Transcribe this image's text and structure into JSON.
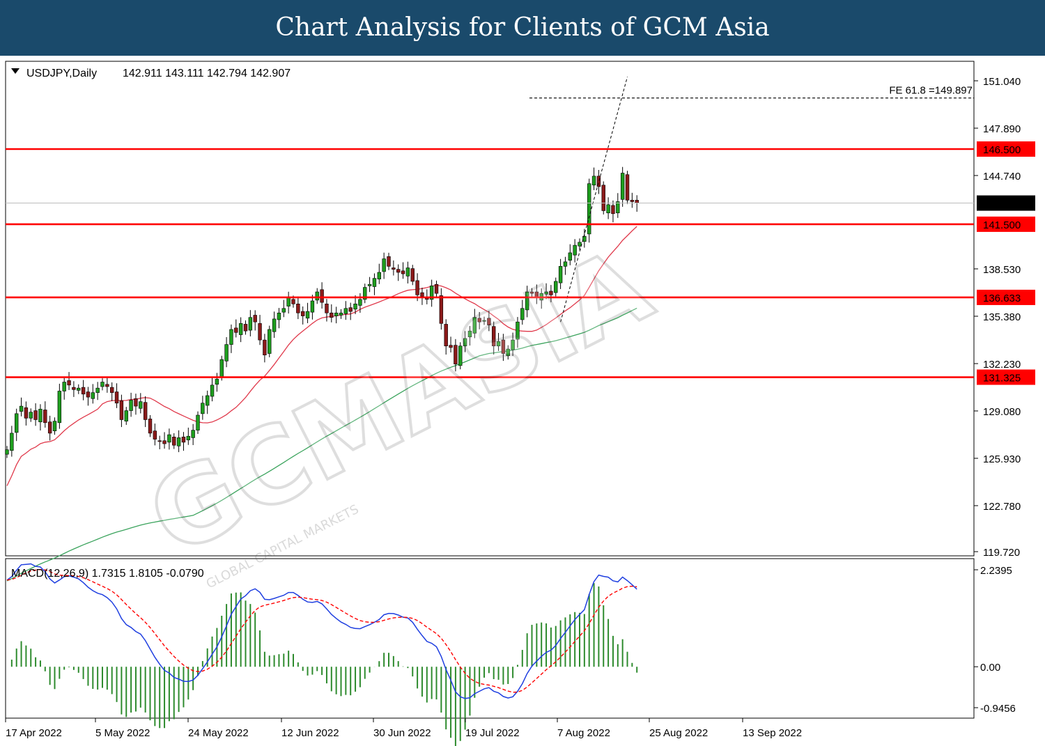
{
  "banner": {
    "title": "Chart Analysis for Clients of GCM Asia"
  },
  "watermark": {
    "brand": "GCMASIA",
    "subtitle": "GLOBAL CAPITAL MARKETS"
  },
  "colors": {
    "banner": "#1a4a6b",
    "bull": "#1e9e1e",
    "bear": "#8b1a1a",
    "ma_fast": "#e0394b",
    "ma_slow": "#3aa35c",
    "level": "#ff0000",
    "macd": "#1f3fe0",
    "signal": "#ff0000",
    "hist": "#2e8b2e"
  },
  "chart_data": [
    {
      "type": "candlestick",
      "title": "USDJPY,Daily",
      "header": {
        "symbol": "USDJPY,Daily",
        "ohlc": "142.911 143.111 142.794 142.907"
      },
      "ylim": [
        119.2,
        152.0
      ],
      "y_ticks": [
        "151.040",
        "147.890",
        "144.740",
        "138.530",
        "135.380",
        "132.230",
        "129.080",
        "125.930",
        "122.780",
        "119.720"
      ],
      "x_ticks": [
        "17 Apr 2022",
        "5 May 2022",
        "24 May 2022",
        "12 Jun 2022",
        "30 Jun 2022",
        "19 Jul 2022",
        "7 Aug 2022",
        "25 Aug 2022",
        "13 Sep 2022"
      ],
      "current_price": "142.907",
      "levels": [
        {
          "value": 146.5,
          "label": "146.500"
        },
        {
          "value": 141.5,
          "label": "141.500"
        },
        {
          "value": 136.633,
          "label": "136.633"
        },
        {
          "value": 131.325,
          "label": "131.325"
        }
      ],
      "fib_label": "FE 61.8 =149.897",
      "fib_value": 149.897,
      "grid": false,
      "closes": [
        126.5,
        127.6,
        128.9,
        129.4,
        128.6,
        129.0,
        128.5,
        129.2,
        128.3,
        127.6,
        128.4,
        130.4,
        131.0,
        130.8,
        130.5,
        130.6,
        130.2,
        130.0,
        130.3,
        130.6,
        131.0,
        130.7,
        130.3,
        129.6,
        128.5,
        129.1,
        129.8,
        129.4,
        129.7,
        128.5,
        127.6,
        127.2,
        127.1,
        126.9,
        127.5,
        126.8,
        127.3,
        127.0,
        127.4,
        127.8,
        128.8,
        129.6,
        130.1,
        130.8,
        131.2,
        132.5,
        133.5,
        134.5,
        134.3,
        134.9,
        134.4,
        135.3,
        135.0,
        133.8,
        132.8,
        134.5,
        135.2,
        135.6,
        135.9,
        136.6,
        136.2,
        135.6,
        135.4,
        135.7,
        136.4,
        137.0,
        136.3,
        135.6,
        135.3,
        135.6,
        135.6,
        135.9,
        135.7,
        136.2,
        136.5,
        137.3,
        137.5,
        137.9,
        138.3,
        139.2,
        138.7,
        138.5,
        138.3,
        138.2,
        138.6,
        137.7,
        136.8,
        136.7,
        136.5,
        137.4,
        136.9,
        134.9,
        133.4,
        133.3,
        132.2,
        133.4,
        133.9,
        134.4,
        135.3,
        135.0,
        135.1,
        134.8,
        133.4,
        133.7,
        132.9,
        133.2,
        133.8,
        135.0,
        135.9,
        137.0,
        136.9,
        136.6,
        136.9,
        137.0,
        136.8,
        137.7,
        138.7,
        139.0,
        139.6,
        140.1,
        140.3,
        140.7,
        144.2,
        144.7,
        144.0,
        142.4,
        142.8,
        142.2,
        143.0,
        144.9,
        143.1,
        143.0,
        142.9
      ]
    },
    {
      "type": "line",
      "title": "MACD(12,26,9) 1.7315 1.8105 -0.0790",
      "header": {
        "name": "MACD(12,26,9)",
        "values": "1.7315 1.8105 -0.0790"
      },
      "ylim": [
        -1.25,
        2.45
      ],
      "y_ticks": [
        "2.2395",
        "0.00",
        "-0.9456"
      ],
      "grid": false
    }
  ]
}
